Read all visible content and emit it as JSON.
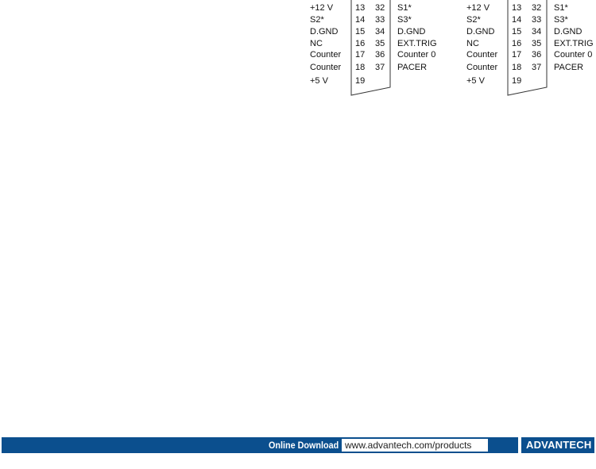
{
  "connectors": [
    {
      "rows": [
        {
          "left": "+12 V",
          "pin_a": "13",
          "pin_b": "32",
          "right": "S1*"
        },
        {
          "left": "S2*",
          "pin_a": "14",
          "pin_b": "33",
          "right": "S3*"
        },
        {
          "left": "D.GND",
          "pin_a": "15",
          "pin_b": "34",
          "right": "D.GND"
        },
        {
          "left": "NC",
          "pin_a": "16",
          "pin_b": "35",
          "right": "EXT.TRIG"
        },
        {
          "left": "Counter",
          "pin_a": "17",
          "pin_b": "36",
          "right": "Counter 0"
        },
        {
          "left": "Counter",
          "pin_a": "18",
          "pin_b": "37",
          "right": "PACER"
        },
        {
          "left": "+5 V",
          "pin_a": "19",
          "pin_b": "",
          "right": ""
        }
      ]
    },
    {
      "rows": [
        {
          "left": "+12 V",
          "pin_a": "13",
          "pin_b": "32",
          "right": "S1*"
        },
        {
          "left": "S2*",
          "pin_a": "14",
          "pin_b": "33",
          "right": "S3*"
        },
        {
          "left": "D.GND",
          "pin_a": "15",
          "pin_b": "34",
          "right": "D.GND"
        },
        {
          "left": "NC",
          "pin_a": "16",
          "pin_b": "35",
          "right": "EXT.TRIG"
        },
        {
          "left": "Counter",
          "pin_a": "17",
          "pin_b": "36",
          "right": "Counter 0"
        },
        {
          "left": "Counter",
          "pin_a": "18",
          "pin_b": "37",
          "right": "PACER"
        },
        {
          "left": "+5 V",
          "pin_a": "19",
          "pin_b": "",
          "right": ""
        }
      ]
    }
  ],
  "footer": {
    "label": "Online Download",
    "url": "www.advantech.com/products",
    "logo": "ADVANTECH",
    "color": "#0b4f8e"
  }
}
